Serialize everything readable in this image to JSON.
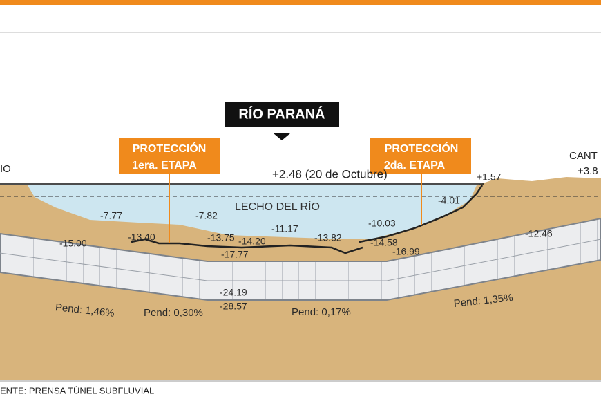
{
  "header": {
    "title": "RÍO PARANÁ"
  },
  "callouts": [
    {
      "lines": [
        "PROTECCIÓN",
        "1era. ETAPA"
      ]
    },
    {
      "lines": [
        "PROTECCIÓN",
        "2da. ETAPA"
      ]
    }
  ],
  "water_level": "+2.48 (20 de Octubre)",
  "river_bed_label": "LECHO DEL RÍO",
  "edge_labels": {
    "left": "IO",
    "right_name": "CANT",
    "right_level": "+3.8"
  },
  "elevations": [
    "-7.77",
    "-7.82",
    "-11.17",
    "-10.03",
    "-4.01",
    "+1.57",
    "-15.00",
    "-13.40",
    "-13.75",
    "-14.20",
    "-13.82",
    "-14.58",
    "-16.99",
    "-17.77",
    "-12.46",
    "-24.19",
    "-28.57"
  ],
  "slopes": [
    "Pend: 1,46%",
    "Pend: 0,30%",
    "Pend: 0,17%",
    "Pend: 1,35%"
  ],
  "source": "ENTE: PRENSA TÚNEL SUBFLUVIAL"
}
